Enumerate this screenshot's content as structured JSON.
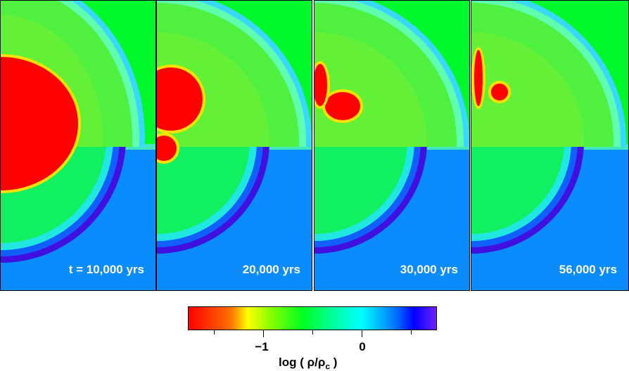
{
  "panels": [
    {
      "label": "t = 10,000 yrs"
    },
    {
      "label": "20,000 yrs"
    },
    {
      "label": "30,000 yrs"
    },
    {
      "label": "56,000 yrs"
    }
  ],
  "colorbar": {
    "title_prefix": "log ( ρ/ρ",
    "title_sub": "c",
    "title_suffix": " )",
    "tick_labels": [
      "−1",
      "0"
    ]
  },
  "chart_data": {
    "type": "heatmap",
    "title": "",
    "colorbar_label": "log ( ρ/ρc )",
    "colorbar_range": [
      -1.75,
      0.75
    ],
    "colorbar_major_ticks": [
      -1,
      0
    ],
    "colorbar_minor_ticks": [
      -1.5,
      -0.5,
      0.5
    ],
    "colormap": [
      "#ff0000",
      "#ffff00",
      "#00ff20",
      "#00ffff",
      "#0000ff",
      "#7020ff"
    ],
    "panels": [
      "t = 10,000 yrs",
      "20,000 yrs",
      "30,000 yrs",
      "56,000 yrs"
    ]
  }
}
